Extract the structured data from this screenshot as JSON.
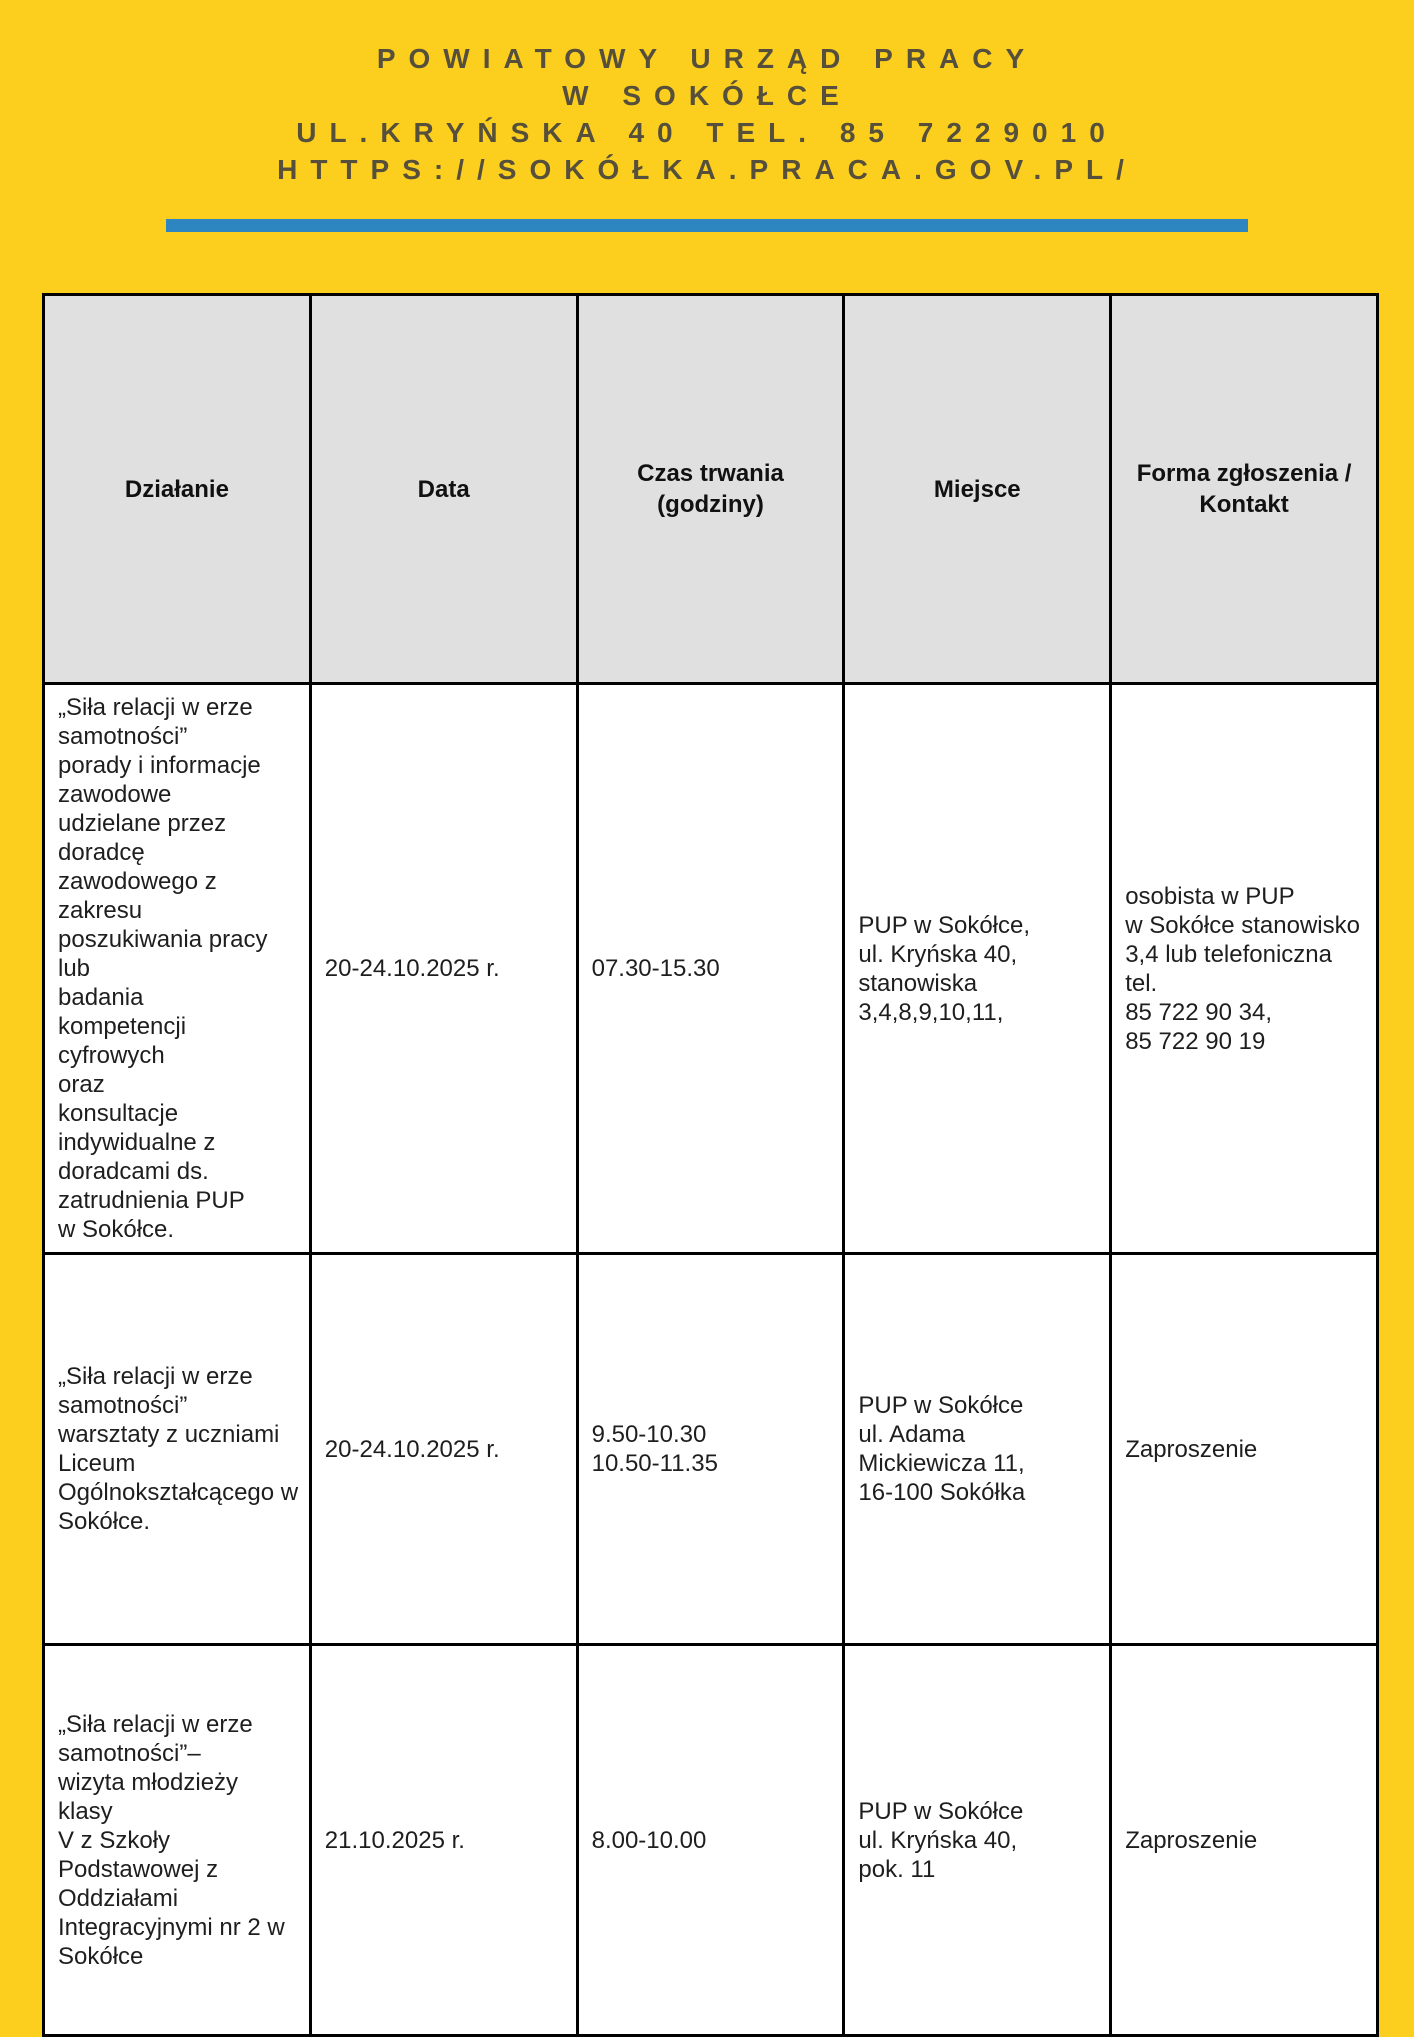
{
  "page": {
    "background_color": "#FCCF1E",
    "accent_blue": "#2E86C1",
    "banner_text_color": "#554F3B",
    "table_header_bg": "#E0E0E0",
    "table_border_color": "#000000"
  },
  "banner": {
    "lines": [
      "POWIATOWY URZĄD PRACY",
      "W SOKÓŁCE",
      "UL.KRYŃSKA 40 TEL. 85 7229010",
      "HTTPS://SOKÓŁKA.PRACA.GOV.PL/"
    ]
  },
  "table": {
    "columns": [
      "Działanie",
      "Data",
      "Czas trwania\n(godziny)",
      "Miejsce",
      "Forma zgłoszenia /\nKontakt"
    ],
    "rows": [
      {
        "activity": "„Siła relacji w erze\nsamotności”\nporady i informacje\nzawodowe\nudzielane przez\ndoradcę\nzawodowego z zakresu\nposzukiwania pracy lub\nbadania\nkompetencji cyfrowych\noraz\nkonsultacje\nindywidualne z\ndoradcami ds.\nzatrudnienia PUP\nw Sokółce.",
        "date": "20-24.10.2025 r.",
        "duration": "07.30-15.30",
        "place": "PUP w Sokółce,\nul. Kryńska 40,\nstanowiska\n3,4,8,9,10,11,",
        "contact": "osobista w PUP\nw Sokółce stanowisko\n3,4 lub telefoniczna\ntel.\n85 722 90 34,\n85 722 90 19"
      },
      {
        "activity": "„Siła relacji w erze\nsamotności”\nwarsztaty z uczniami\nLiceum\nOgólnokształcącego w\nSokółce.",
        "date": "20-24.10.2025 r.",
        "duration": "9.50-10.30\n10.50-11.35",
        "place": "PUP w Sokółce\nul. Adama\nMickiewicza 11,\n16-100 Sokółka",
        "contact": "Zaproszenie"
      },
      {
        "activity": "„Siła relacji w erze\nsamotności”–\nwizyta młodzieży klasy\nV z Szkoły\nPodstawowej z\nOddziałami\nIntegracyjnymi nr 2 w\nSokółce",
        "date": "21.10.2025 r.",
        "duration": "8.00-10.00",
        "place": "PUP w Sokółce\nul. Kryńska 40,\npok. 11",
        "contact": "Zaproszenie"
      }
    ]
  }
}
